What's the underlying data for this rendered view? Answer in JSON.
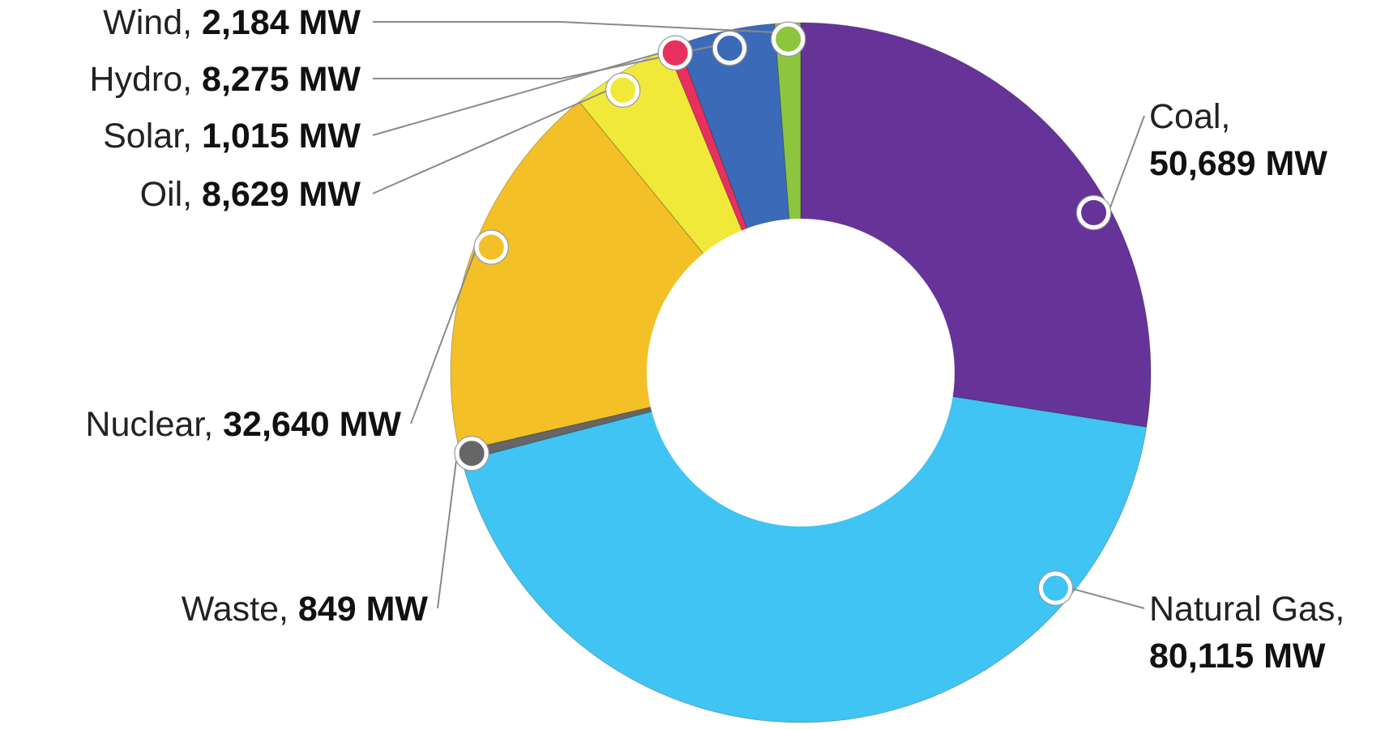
{
  "chart_data": {
    "type": "pie",
    "variant": "donut",
    "title": "",
    "unit": "MW",
    "start": "top, clockwise",
    "slices": [
      {
        "key": "coal",
        "name": "Coal,",
        "value": 50689,
        "value_label": "50,689 MW",
        "color": "#663399",
        "label_side": "right",
        "label_layout": "two-line"
      },
      {
        "key": "natural-gas",
        "name": "Natural Gas,",
        "value": 80115,
        "value_label": "80,115 MW",
        "color": "#40c4f3",
        "label_side": "right",
        "label_layout": "two-line"
      },
      {
        "key": "waste",
        "name": "Waste,",
        "value": 849,
        "value_label": "849 MW",
        "color": "#666666",
        "label_side": "left",
        "label_layout": "one-line"
      },
      {
        "key": "nuclear",
        "name": "Nuclear,",
        "value": 32640,
        "value_label": "32,640 MW",
        "color": "#f4c028",
        "label_side": "left",
        "label_layout": "one-line"
      },
      {
        "key": "oil",
        "name": "Oil,",
        "value": 8629,
        "value_label": "8,629 MW",
        "color": "#f0e93a",
        "label_side": "left",
        "label_layout": "one-line"
      },
      {
        "key": "solar",
        "name": "Solar,",
        "value": 1015,
        "value_label": "1,015 MW",
        "color": "#e8305f",
        "label_side": "left",
        "label_layout": "one-line"
      },
      {
        "key": "hydro",
        "name": "Hydro,",
        "value": 8275,
        "value_label": "8,275 MW",
        "color": "#3b6ab8",
        "label_side": "left",
        "label_layout": "one-line"
      },
      {
        "key": "wind",
        "name": "Wind,",
        "value": 2184,
        "value_label": "2,184 MW",
        "color": "#8cc63f",
        "label_side": "left",
        "label_layout": "one-line"
      }
    ]
  }
}
